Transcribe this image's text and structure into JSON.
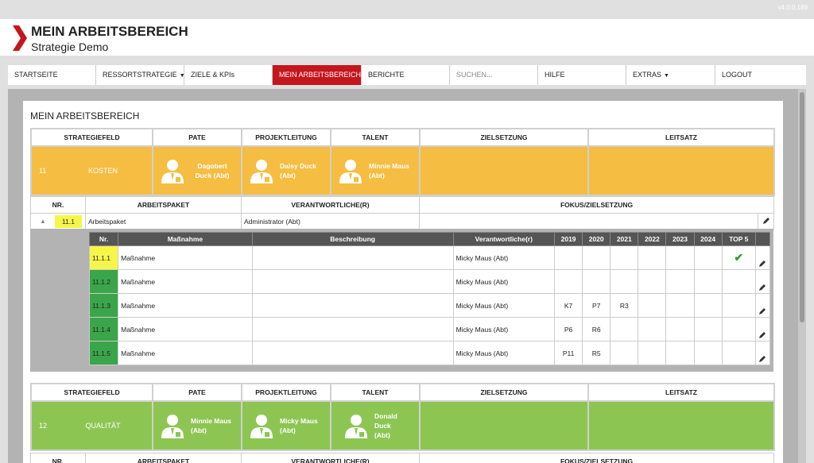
{
  "version": "v4.0.0.189",
  "app": {
    "title": "MEIN ARBEITSBEREICH",
    "subtitle": "Strategie Demo"
  },
  "nav": {
    "items": [
      {
        "label": "STARTSEITE"
      },
      {
        "label": "RESSORTSTRATEGIE"
      },
      {
        "label": "ZIELE & KPIs"
      },
      {
        "label": "MEIN ARBEITSBEREICH"
      },
      {
        "label": "BERICHTE"
      },
      {
        "label": "HILFE"
      },
      {
        "label": "EXTRAS"
      },
      {
        "label": "LOGOUT"
      }
    ],
    "search_placeholder": "SUCHEN..."
  },
  "panel_title": "MEIN ARBEITSBEREICH",
  "headers": {
    "strategiefeld": "STRATEGIEFELD",
    "pate": "PATE",
    "projektleitung": "PROJEKTLEITUNG",
    "talent": "TALENT",
    "zielsetzung": "ZIELSETZUNG",
    "leitsatz": "LEITSATZ",
    "nr": "NR.",
    "arbeitspaket": "ARBEITSPAKET",
    "verantwortliche": "VERANTWORTLICHE(R)",
    "fokus": "FOKUS/ZIELSETZUNG"
  },
  "section1": {
    "nr": "11",
    "name": "KOSTEN",
    "pate": "Dagobert Duck (Abt)",
    "projektleitung": "Daisy Duck (Abt)",
    "talent": "Minnie Maus (Abt)",
    "color": "#f5bd41",
    "paket": {
      "nr": "11.1",
      "name": "Arbeitspaket",
      "verantwortlich": "Administrator (Abt)"
    }
  },
  "measure_headers": {
    "nr": "Nr.",
    "massnahme": "Maßnahme",
    "beschreibung": "Beschreibung",
    "verantwortliche": "Verantwortliche(r)",
    "years": [
      "2019",
      "2020",
      "2021",
      "2022",
      "2023",
      "2024"
    ],
    "top5": "TOP 5"
  },
  "measures": [
    {
      "nr": "11.1.1",
      "name": "Maßnahme",
      "verantwortlich": "Micky Maus (Abt)",
      "y2019": "",
      "y2020": "",
      "y2021": ""
    },
    {
      "nr": "11.1.2",
      "name": "Maßnahme",
      "verantwortlich": "Micky Maus (Abt)",
      "y2019": "",
      "y2020": "",
      "y2021": ""
    },
    {
      "nr": "11.1.3",
      "name": "Maßnahme",
      "verantwortlich": "Micky Maus (Abt)",
      "y2019": "K7",
      "y2020": "P7",
      "y2021": "R3"
    },
    {
      "nr": "11.1.4",
      "name": "Maßnahme",
      "verantwortlich": "Micky Maus (Abt)",
      "y2019": "P6",
      "y2020": "R6",
      "y2021": ""
    },
    {
      "nr": "11.1.5",
      "name": "Maßnahme",
      "verantwortlich": "Micky Maus (Abt)",
      "y2019": "P11",
      "y2020": "R5",
      "y2021": ""
    }
  ],
  "section2": {
    "nr": "12",
    "name": "QUALITÄT",
    "pate": "Minnie Maus (Abt)",
    "projektleitung": "Micky Maus (Abt)",
    "talent": "Donald Duck (Abt)",
    "color": "#8dc553"
  },
  "colors": {
    "accent": "#c4161c",
    "yellow": "#f6f64a",
    "green_nr": "#3aa54a"
  },
  "icons": {
    "person": "person-icon",
    "edit": "pencil-icon",
    "check": "check-icon",
    "collapse": "caret-up-icon"
  }
}
